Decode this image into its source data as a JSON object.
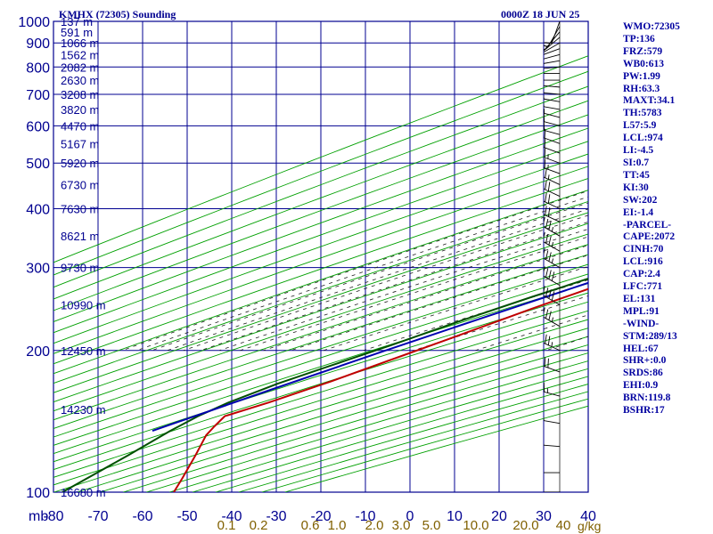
{
  "chart_data": {
    "type": "line",
    "title": "KMHX (72305) Sounding",
    "time": "0000Z 18 JUN 25",
    "x_unit": "°C",
    "y_unit": "mb",
    "mixing_ratio_unit": "g/kg",
    "xlim": [
      -80,
      40
    ],
    "ylim": [
      1000,
      100
    ],
    "y_scale": "log",
    "x_ticks": [
      -80,
      -70,
      -60,
      -50,
      -40,
      -30,
      -20,
      -10,
      0,
      10,
      20,
      30,
      40
    ],
    "x_tick_labels": [
      "-80",
      "-70",
      "-60",
      "-50",
      "-40",
      "-30",
      "-20",
      "-10",
      "0",
      "10",
      "20",
      "30",
      "40"
    ],
    "pressure_levels": [
      100,
      200,
      300,
      400,
      500,
      600,
      700,
      800,
      900,
      1000
    ],
    "height_labels": [
      {
        "p": 100,
        "text": "16680 m"
      },
      {
        "p": 150,
        "text": "14230 m"
      },
      {
        "p": 200,
        "text": "12450 m"
      },
      {
        "p": 250,
        "text": "10990 m"
      },
      {
        "p": 300,
        "text": "9730 m"
      },
      {
        "p": 350,
        "text": "8621 m"
      },
      {
        "p": 400,
        "text": "7630 m"
      },
      {
        "p": 450,
        "text": "6730 m"
      },
      {
        "p": 500,
        "text": "5920 m"
      },
      {
        "p": 550,
        "text": "5167 m"
      },
      {
        "p": 600,
        "text": "4470 m"
      },
      {
        "p": 650,
        "text": "3820 m"
      },
      {
        "p": 700,
        "text": "3208 m"
      },
      {
        "p": 750,
        "text": "2630 m"
      },
      {
        "p": 800,
        "text": "2082 m"
      },
      {
        "p": 850,
        "text": "1562 m"
      },
      {
        "p": 900,
        "text": "1066 m"
      },
      {
        "p": 950,
        "text": "591 m"
      },
      {
        "p": 1000,
        "text": "137 m"
      }
    ],
    "mixing_ratio_labels": [
      "0.1",
      "0.2",
      "0.6",
      "1.0",
      "2.0",
      "3.0",
      "5.0",
      "10.0",
      "20.0",
      "40"
    ],
    "series": [
      {
        "role": "temperature",
        "color": "#c00000",
        "points": [
          [
            28,
            1000
          ],
          [
            26,
            990
          ],
          [
            24,
            975
          ],
          [
            23,
            960
          ],
          [
            21,
            930
          ],
          [
            19,
            900
          ],
          [
            16,
            870
          ],
          [
            13,
            840
          ],
          [
            10,
            812
          ],
          [
            7,
            780
          ],
          [
            4,
            750
          ],
          [
            0,
            705
          ],
          [
            -3,
            670
          ],
          [
            -6,
            640
          ],
          [
            -9,
            610
          ],
          [
            -11,
            590
          ],
          [
            -13,
            565
          ],
          [
            -15,
            540
          ],
          [
            -17,
            515
          ],
          [
            -19,
            495
          ],
          [
            -20,
            475
          ],
          [
            -21,
            460
          ],
          [
            -22,
            445
          ],
          [
            -24,
            430
          ],
          [
            -26,
            410
          ],
          [
            -28,
            395
          ],
          [
            -30,
            380
          ],
          [
            -33,
            360
          ],
          [
            -36,
            345
          ],
          [
            -38,
            330
          ],
          [
            -41,
            310
          ],
          [
            -42,
            300
          ],
          [
            -46,
            275
          ],
          [
            -51,
            245
          ],
          [
            -56,
            215
          ],
          [
            -61,
            190
          ],
          [
            -65,
            172
          ],
          [
            -70,
            155
          ],
          [
            -74,
            145
          ],
          [
            -72,
            138
          ],
          [
            -70,
            132
          ],
          [
            -64,
            120
          ],
          [
            -57,
            107
          ],
          [
            -53,
            100
          ]
        ]
      },
      {
        "role": "dewpoint",
        "color": "#005000",
        "points": [
          [
            22,
            1000
          ],
          [
            20,
            990
          ],
          [
            21,
            980
          ],
          [
            22,
            970
          ],
          [
            19,
            960
          ],
          [
            18,
            940
          ],
          [
            15,
            920
          ],
          [
            12,
            900
          ],
          [
            8,
            880
          ],
          [
            5,
            860
          ],
          [
            2,
            840
          ],
          [
            0,
            820
          ],
          [
            -2,
            805
          ],
          [
            -4,
            790
          ],
          [
            -5,
            770
          ],
          [
            -6,
            750
          ],
          [
            -7,
            735
          ],
          [
            -8,
            720
          ],
          [
            -10,
            705
          ],
          [
            -11,
            690
          ],
          [
            -12,
            670
          ],
          [
            -13,
            650
          ],
          [
            -14,
            630
          ],
          [
            -15,
            610
          ],
          [
            -16,
            595
          ],
          [
            -17,
            580
          ],
          [
            -16,
            570
          ],
          [
            -20,
            560
          ],
          [
            -19,
            550
          ],
          [
            -21,
            540
          ],
          [
            -22,
            520
          ],
          [
            -24,
            505
          ],
          [
            -24,
            490
          ],
          [
            -25,
            475
          ],
          [
            -27,
            460
          ],
          [
            -28,
            450
          ],
          [
            -29,
            440
          ],
          [
            -31,
            425
          ],
          [
            -33,
            410
          ],
          [
            -36,
            395
          ],
          [
            -37,
            380
          ],
          [
            -38,
            370
          ],
          [
            -40,
            355
          ],
          [
            -41,
            340
          ],
          [
            -43,
            330
          ],
          [
            -43,
            320
          ],
          [
            -46,
            305
          ],
          [
            -51,
            285
          ],
          [
            -56,
            260
          ],
          [
            -62,
            230
          ],
          [
            -67,
            205
          ],
          [
            -72,
            185
          ],
          [
            -76,
            170
          ],
          [
            -79,
            155
          ],
          [
            -80,
            145
          ],
          [
            -80,
            135
          ],
          [
            -79,
            120
          ],
          [
            -78,
            100
          ]
        ]
      },
      {
        "role": "parcel",
        "color": "#0000b0",
        "points": [
          [
            26,
            1000
          ],
          [
            25,
            990
          ],
          [
            23,
            975
          ],
          [
            21,
            955
          ],
          [
            19,
            935
          ],
          [
            17,
            905
          ],
          [
            15,
            870
          ],
          [
            12,
            830
          ],
          [
            9,
            790
          ],
          [
            6,
            750
          ],
          [
            3,
            710
          ],
          [
            0,
            675
          ],
          [
            -3,
            645
          ],
          [
            -7,
            610
          ],
          [
            -11,
            575
          ],
          [
            -15,
            540
          ],
          [
            -19,
            505
          ],
          [
            -23,
            470
          ],
          [
            -28,
            430
          ],
          [
            -33,
            390
          ],
          [
            -38,
            350
          ],
          [
            -43,
            315
          ],
          [
            -50,
            275
          ],
          [
            -58,
            235
          ],
          [
            -66,
            200
          ],
          [
            -75,
            165
          ],
          [
            -84,
            135
          ]
        ]
      }
    ],
    "wind_barbs": [
      {
        "p": 1000,
        "dir": 200,
        "spd": 10
      },
      {
        "p": 975,
        "dir": 210,
        "spd": 15
      },
      {
        "p": 950,
        "dir": 220,
        "spd": 15
      },
      {
        "p": 925,
        "dir": 230,
        "spd": 15
      },
      {
        "p": 900,
        "dir": 240,
        "spd": 20
      },
      {
        "p": 875,
        "dir": 250,
        "spd": 20
      },
      {
        "p": 850,
        "dir": 255,
        "spd": 20
      },
      {
        "p": 825,
        "dir": 260,
        "spd": 20
      },
      {
        "p": 800,
        "dir": 265,
        "spd": 20
      },
      {
        "p": 775,
        "dir": 270,
        "spd": 20
      },
      {
        "p": 750,
        "dir": 270,
        "spd": 25
      },
      {
        "p": 725,
        "dir": 275,
        "spd": 25
      },
      {
        "p": 700,
        "dir": 275,
        "spd": 25
      },
      {
        "p": 675,
        "dir": 280,
        "spd": 25
      },
      {
        "p": 650,
        "dir": 280,
        "spd": 25
      },
      {
        "p": 625,
        "dir": 285,
        "spd": 25
      },
      {
        "p": 600,
        "dir": 285,
        "spd": 30
      },
      {
        "p": 575,
        "dir": 285,
        "spd": 30
      },
      {
        "p": 550,
        "dir": 290,
        "spd": 30
      },
      {
        "p": 525,
        "dir": 290,
        "spd": 30
      },
      {
        "p": 500,
        "dir": 290,
        "spd": 35
      },
      {
        "p": 475,
        "dir": 290,
        "spd": 35
      },
      {
        "p": 450,
        "dir": 295,
        "spd": 35
      },
      {
        "p": 425,
        "dir": 295,
        "spd": 40
      },
      {
        "p": 400,
        "dir": 295,
        "spd": 40
      },
      {
        "p": 375,
        "dir": 295,
        "spd": 40
      },
      {
        "p": 350,
        "dir": 300,
        "spd": 45
      },
      {
        "p": 325,
        "dir": 300,
        "spd": 45
      },
      {
        "p": 300,
        "dir": 300,
        "spd": 45
      },
      {
        "p": 275,
        "dir": 300,
        "spd": 50
      },
      {
        "p": 250,
        "dir": 300,
        "spd": 50
      },
      {
        "p": 225,
        "dir": 300,
        "spd": 45
      },
      {
        "p": 200,
        "dir": 295,
        "spd": 45
      },
      {
        "p": 180,
        "dir": 290,
        "spd": 40
      },
      {
        "p": 160,
        "dir": 285,
        "spd": 35
      },
      {
        "p": 140,
        "dir": 280,
        "spd": 30
      },
      {
        "p": 125,
        "dir": 275,
        "spd": 25
      },
      {
        "p": 110,
        "dir": 270,
        "spd": 20
      },
      {
        "p": 100,
        "dir": 270,
        "spd": 20
      }
    ],
    "colors": {
      "grid": "#000090",
      "dry_adiabat": "#00a000",
      "moist_adiabat": "#202020",
      "mixing_ratio": "#3070d0",
      "axis_text": "#000090",
      "mixing_ratio_text": "#806000"
    }
  },
  "stats": [
    "WMO:72305",
    "TP:136",
    "FRZ:579",
    "WB0:613",
    "PW:1.99",
    "RH:63.3",
    "MAXT:34.1",
    "TH:5783",
    "L57:5.9",
    "LCL:974",
    "LI:-4.5",
    "SI:0.7",
    "TT:45",
    "KI:30",
    "SW:202",
    "EI:-1.4",
    "-PARCEL-",
    "CAPE:2072",
    "CINH:70",
    "LCL:916",
    "CAP:2.4",
    "LFC:771",
    "EL:131",
    "MPL:91",
    "-WIND-",
    "STM:289/13",
    "HEL:67",
    "SHR+:0.0",
    "SRDS:86",
    "EHI:0.9",
    "BRN:119.8",
    "BSHR:17"
  ]
}
